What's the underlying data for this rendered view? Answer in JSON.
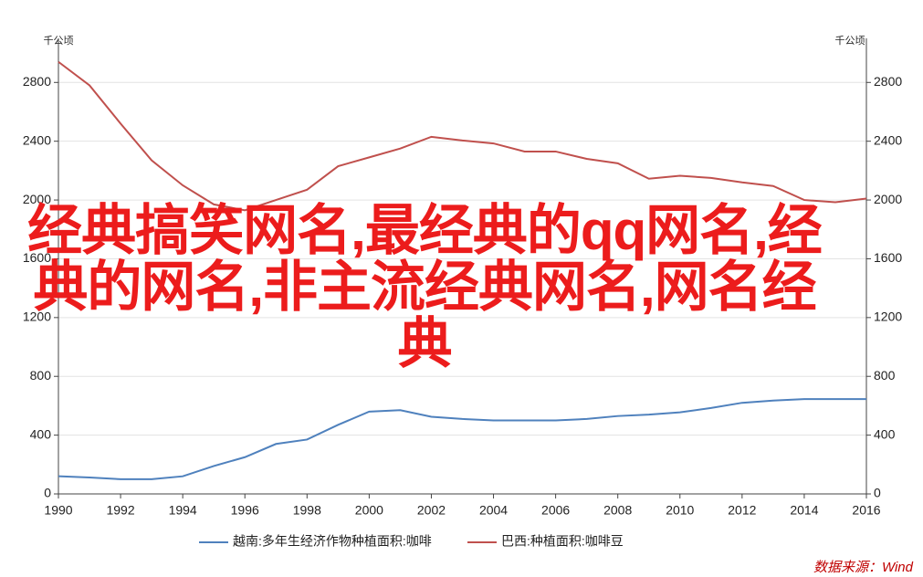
{
  "chart_data": {
    "type": "line",
    "y_unit_label": "千公顷",
    "y2_unit_label": "千公顷",
    "overlay_title": "经典搞笑网名,最经典的qq网名,经典的网名,非主流经典网名,网名经典",
    "source": "数据来源：Wind",
    "x": [
      1990,
      1991,
      1992,
      1993,
      1994,
      1995,
      1996,
      1997,
      1998,
      1999,
      2000,
      2001,
      2002,
      2003,
      2004,
      2005,
      2006,
      2007,
      2008,
      2009,
      2010,
      2011,
      2012,
      2013,
      2014,
      2015,
      2016
    ],
    "xlim": [
      1990,
      2016
    ],
    "xticks": [
      1990,
      1992,
      1994,
      1996,
      1998,
      2000,
      2002,
      2004,
      2006,
      2008,
      2010,
      2012,
      2014,
      2016
    ],
    "ylim": [
      0,
      3100
    ],
    "yticks": [
      0,
      400,
      800,
      1200,
      1600,
      2000,
      2400,
      2800
    ],
    "y2lim": [
      0,
      3100
    ],
    "y2ticks": [
      0,
      400,
      800,
      1200,
      1600,
      2000,
      2400,
      2800
    ],
    "grid": true,
    "series": [
      {
        "name": "越南:多年生经济作物种植面积:咖啡",
        "color": "#4f81bd",
        "values": [
          120,
          112,
          100,
          100,
          120,
          190,
          250,
          340,
          370,
          470,
          560,
          570,
          525,
          510,
          500,
          500,
          500,
          510,
          530,
          540,
          555,
          585,
          620,
          635,
          645,
          645,
          645
        ]
      },
      {
        "name": "巴西:种植面积:咖啡豆",
        "color": "#c0504d",
        "values": [
          2940,
          2780,
          2520,
          2270,
          2100,
          1970,
          1930,
          2000,
          2070,
          2230,
          2290,
          2350,
          2430,
          2405,
          2385,
          2330,
          2330,
          2280,
          2250,
          2145,
          2165,
          2150,
          2120,
          2095,
          2000,
          1985,
          2010
        ]
      }
    ]
  }
}
